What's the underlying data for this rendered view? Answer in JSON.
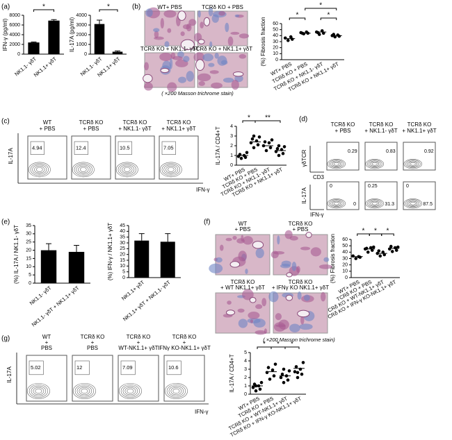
{
  "figure": {
    "panels": [
      "(a)",
      "(b)",
      "(c)",
      "(d)",
      "(e)",
      "(f)",
      "(g)"
    ],
    "b_images": {
      "labels": [
        "WT+ PBS",
        "TCRδ KO + PBS",
        "TCRδ KO + NK1.1- γδT",
        "TCRδ KO + NK1.1+ γδT"
      ],
      "caption": "( ×200 Masson trichrome stain)"
    },
    "c_flow": {
      "headers": [
        [
          "WT",
          "+ PBS"
        ],
        [
          "TCRδ KO",
          "+ PBS"
        ],
        [
          "TCRδ KO",
          "+ NK1.1- γδT"
        ],
        [
          "TCRδ KO",
          "+ NK1.1+ γδT"
        ]
      ],
      "gates": [
        "4.94",
        "12.4",
        "10.5",
        "7.05"
      ],
      "y_label": "IL-17A",
      "x_label": "IFN-γ"
    },
    "d_flow": {
      "headers": [
        [
          "TCRδ KO",
          "+ PBS"
        ],
        [
          "TCRδ KO",
          "+ NK1.1- γδT"
        ],
        [
          "TCRδ KO",
          "+ NK1.1+ γδT"
        ]
      ],
      "row1_labels": {
        "y": "γδTCR",
        "x": "CD3"
      },
      "row1_gates": [
        "0.29",
        "0.83",
        "0.92"
      ],
      "row2_labels": {
        "y": "IL-17A",
        "x": "IFN-γ"
      },
      "row2_gates": [
        [
          "0",
          "0"
        ],
        [
          "0.25",
          "31.3"
        ],
        [
          "0",
          "87.5"
        ]
      ]
    },
    "f_images": {
      "labels": [
        [
          "WT",
          "+ PBS"
        ],
        [
          "TCRδ KO",
          "+ PBS"
        ],
        [
          "TCRδ KO",
          "+ WT NK1.1+ γδT"
        ],
        [
          "TCRδ KO",
          "+ IFNγ KO NK1.1+ γδT"
        ]
      ],
      "caption": "( ×200 Masson trichrome stain)"
    },
    "g_flow": {
      "headers": [
        [
          "WT",
          "+",
          "PBS"
        ],
        [
          "TCRδ KO",
          "+",
          "PBS"
        ],
        [
          "TCRδ KO",
          "+",
          "WT-NK1.1+ γδT"
        ],
        [
          "TCRδ KO",
          "+",
          "IFNγ KO-NK1.1+ γδT"
        ]
      ],
      "gates": [
        "5.02",
        "12",
        "7.09",
        "10.6"
      ],
      "y_label": "IL-17A",
      "x_label": "IFN-γ"
    }
  },
  "chart_data": [
    {
      "type": "bar",
      "y_label": "IFN-γ (pg/ml)",
      "categories": [
        "NK1.1- γδT",
        "NK1.1+ γδT"
      ],
      "values": [
        2400,
        6900
      ],
      "errors": [
        100,
        200
      ],
      "color": "#000000",
      "ylim": [
        0,
        8000
      ],
      "yticks": [
        0,
        2000,
        4000,
        6000,
        8000
      ],
      "significance": [
        "*"
      ]
    },
    {
      "type": "bar",
      "y_label": "IL-17A (pg/ml)",
      "categories": [
        "NK1.1- γδT",
        "NK1.1+ γδT"
      ],
      "values": [
        3100,
        250
      ],
      "errors": [
        400,
        80
      ],
      "color": "#000000",
      "ylim": [
        0,
        4000
      ],
      "yticks": [
        0,
        1000,
        2000,
        3000,
        4000
      ],
      "significance": [
        "*"
      ]
    },
    {
      "type": "dot",
      "y_label": "(%) Fibrosis fraction",
      "categories": [
        "WT+ PBS",
        "TCRδ KO + PBS",
        "TCRδ KO + NK1.1- γδT",
        "TCRδ KO + NK1.1+ γδT"
      ],
      "points": [
        [
          32,
          34,
          36,
          38
        ],
        [
          43,
          44,
          45,
          46,
          44
        ],
        [
          42,
          44,
          46,
          48,
          45
        ],
        [
          38,
          39,
          40,
          41,
          42
        ]
      ],
      "means": [
        35,
        44,
        46,
        40
      ],
      "ylim": [
        0,
        60
      ],
      "yticks": [
        0,
        10,
        20,
        30,
        40,
        50,
        60
      ],
      "significance": [
        "*",
        "*",
        "*"
      ]
    },
    {
      "type": "dot",
      "y_label": "IL-17A / CD4+T",
      "categories": [
        "WT+ PBS",
        "TCRδ KO + PBS",
        "TCRδ KO + NK1.1- γδT",
        "TCRδ KO + NK1.1+ γδT"
      ],
      "points": [
        [
          0.7,
          0.8,
          0.9,
          1.0,
          1.1,
          1.3
        ],
        [
          1.8,
          2.1,
          2.3,
          2.5,
          2.7,
          2.9,
          3.0
        ],
        [
          1.5,
          1.8,
          2.0,
          2.3,
          2.4,
          2.6
        ],
        [
          1.0,
          1.2,
          1.4,
          1.6,
          1.7,
          1.9,
          2.0
        ]
      ],
      "means": [
        1.0,
        2.4,
        2.0,
        1.5
      ],
      "ylim": [
        0,
        4
      ],
      "yticks": [
        0,
        1,
        2,
        3,
        4
      ],
      "significance": [
        "*",
        "**"
      ]
    },
    {
      "type": "bar",
      "y_label": "(%) IL-17A / NK1.1- γδT",
      "categories": [
        "NK1.1- γδT",
        "NK1.1- γδT + NK1.1+ γδT"
      ],
      "values": [
        20,
        19
      ],
      "errors": [
        4,
        4
      ],
      "color": "#000000",
      "ylim": [
        0,
        35
      ],
      "yticks": [
        0,
        5,
        10,
        15,
        20,
        25,
        30,
        35
      ],
      "significance": []
    },
    {
      "type": "bar",
      "y_label": "(%) IFN-γ / NK1.1+ γδT",
      "categories": [
        "NK1.1+ γδT",
        "NK1.1+ γδT + NK1.1- γδT"
      ],
      "values": [
        32,
        31
      ],
      "errors": [
        6,
        7
      ],
      "color": "#000000",
      "ylim": [
        0,
        45
      ],
      "yticks": [
        0,
        5,
        10,
        15,
        20,
        25,
        30,
        35,
        40,
        45
      ],
      "significance": []
    },
    {
      "type": "dot",
      "y_label": "(%) Fibrosis fraction",
      "categories": [
        "WT+ PBS",
        "TCRδ KO + PBS",
        "TCRδ KO + WT-NK1.1+ γδT",
        "TCRδ KO + IFN-γ KO-NK1.1+ γδT"
      ],
      "points": [
        [
          30,
          32,
          34,
          33
        ],
        [
          40,
          43,
          45,
          47,
          46,
          48
        ],
        [
          34,
          36,
          38,
          40,
          42
        ],
        [
          41,
          43,
          45,
          47,
          49,
          48
        ]
      ],
      "means": [
        33,
        45,
        38,
        46
      ],
      "ylim": [
        0,
        60
      ],
      "yticks": [
        0,
        10,
        20,
        30,
        40,
        50,
        60
      ],
      "significance": [
        "*",
        "*",
        "*"
      ]
    },
    {
      "type": "dot",
      "y_label": "IL-17A / CD4+T",
      "categories": [
        "WT+ PBS",
        "TCRδ KO + PBS",
        "TCRδ KO + WT-NK1.1+ γδT",
        "TCRδ KO + IFN-γ KO-NK1.1+ γδT"
      ],
      "points": [
        [
          0.4,
          0.6,
          0.8,
          1.0,
          1.2,
          1.4,
          1.0
        ],
        [
          1.8,
          2.2,
          2.6,
          2.9,
          3.2,
          3.6
        ],
        [
          1.4,
          1.7,
          2.0,
          2.2,
          2.4,
          2.8,
          3.0
        ],
        [
          2.0,
          2.4,
          2.7,
          3.0,
          3.3,
          3.8,
          2.6
        ]
      ],
      "means": [
        1.0,
        2.7,
        2.2,
        3.1
      ],
      "ylim": [
        0,
        5
      ],
      "yticks": [
        0,
        1,
        2,
        3,
        4,
        5
      ],
      "significance": [
        "*",
        "*",
        "*"
      ]
    }
  ]
}
